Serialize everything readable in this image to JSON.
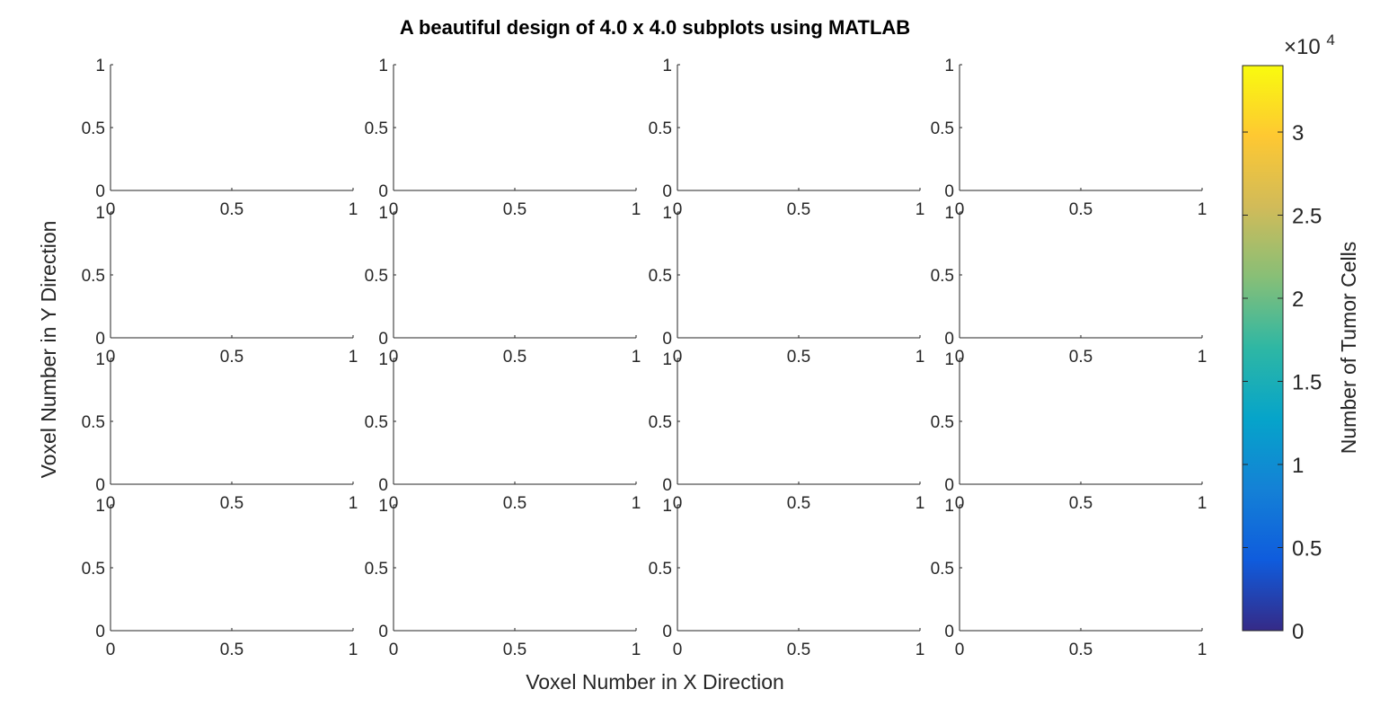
{
  "chart_data": {
    "type": "heatmap",
    "title": "A beautiful design of 4.0 x 4.0 subplots using MATLAB",
    "grid_rows": 4,
    "grid_cols": 4,
    "xlabel": "Voxel Number in X Direction",
    "ylabel": "Voxel Number in Y Direction",
    "xlim": [
      0,
      1
    ],
    "ylim": [
      0,
      1
    ],
    "x_ticks": [
      0,
      0.5,
      1
    ],
    "y_ticks": [
      0,
      0.5,
      1
    ],
    "x_tick_labels": [
      "0",
      "0.5",
      "1"
    ],
    "y_tick_labels": [
      "0",
      "0.5",
      "1"
    ],
    "subplots_data": "empty",
    "colorbar": {
      "label": "Number of Tumor Cells",
      "exponent_label": "×10",
      "exponent": "4",
      "limits": [
        0,
        34000
      ],
      "ticks": [
        0,
        0.5,
        1,
        1.5,
        2,
        2.5,
        3
      ],
      "tick_labels": [
        "0",
        "0.5",
        "1",
        "1.5",
        "2",
        "2.5",
        "3"
      ],
      "colormap": "parula",
      "colormap_stops": [
        "#352a87",
        "#0f5cdd",
        "#1481d6",
        "#06a4ca",
        "#2eb7a4",
        "#87bf77",
        "#d1bb59",
        "#fec832",
        "#f9fb0e"
      ]
    }
  }
}
